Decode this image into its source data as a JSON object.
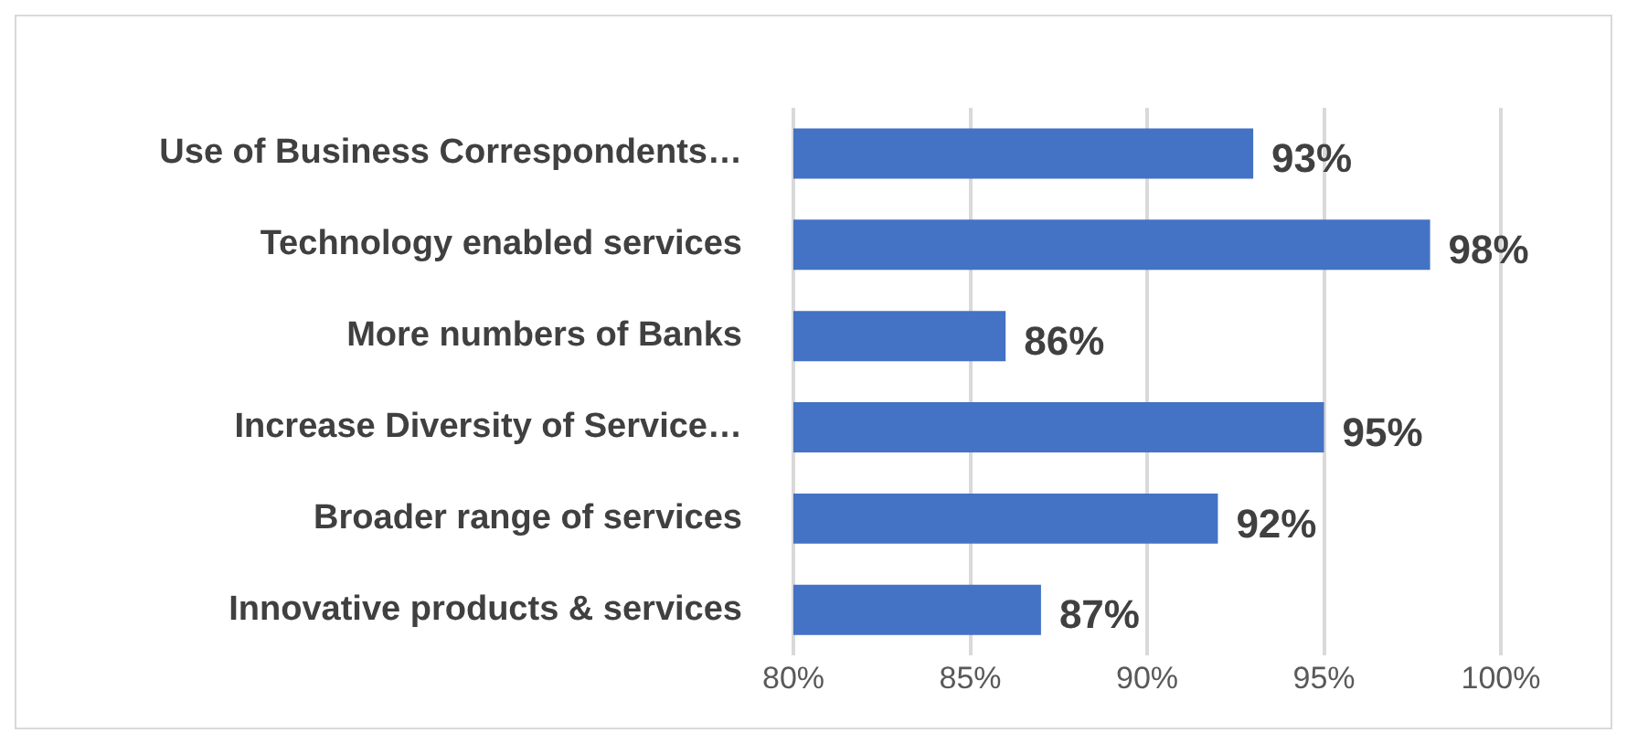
{
  "chart_data": {
    "type": "bar",
    "orientation": "horizontal",
    "categories": [
      "Use of Business Correspondents…",
      "Technology enabled services",
      "More numbers of Banks",
      "Increase Diversity of Service…",
      "Broader range of services",
      "Innovative products & services"
    ],
    "values": [
      93,
      98,
      86,
      95,
      92,
      87
    ],
    "value_labels": [
      "93%",
      "98%",
      "86%",
      "95%",
      "92%",
      "87%"
    ],
    "color": "#4472c4",
    "xlim": [
      80,
      100
    ],
    "xticks": [
      {
        "value": 80,
        "label": "80%"
      },
      {
        "value": 85,
        "label": "85%"
      },
      {
        "value": 90,
        "label": "90%"
      },
      {
        "value": 95,
        "label": "95%"
      },
      {
        "value": 100,
        "label": "100%"
      }
    ],
    "grid": "x"
  }
}
